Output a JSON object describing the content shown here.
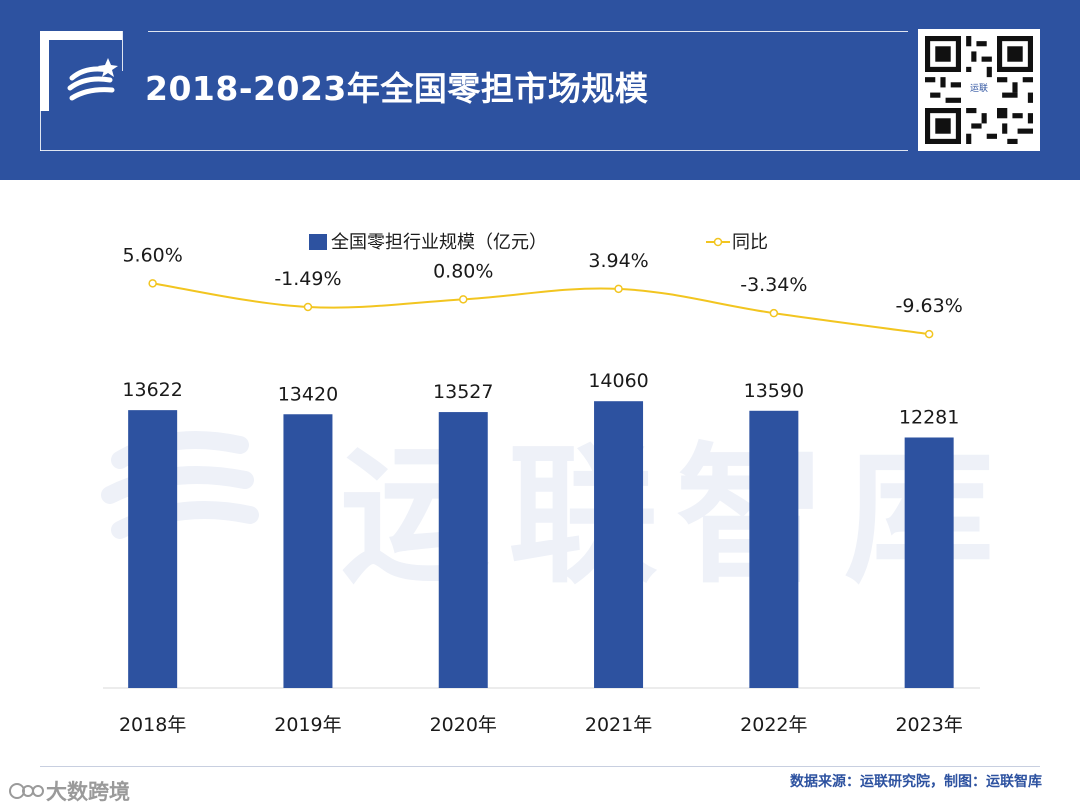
{
  "header": {
    "title": "2018-2023年全国零担市场规模",
    "qr_badge": "运联"
  },
  "legend": {
    "bar_label": "全国零担行业规模（亿元）",
    "line_label": "同比"
  },
  "watermark": "运联智库",
  "footer": {
    "source": "数据来源：运联研究院，制图：运联智库",
    "brand": "大数跨境"
  },
  "colors": {
    "bar": "#2d52a0",
    "line": "#f2c520",
    "header_bg": "#2d52a0"
  },
  "chart_data": {
    "type": "bar",
    "categories": [
      "2018年",
      "2019年",
      "2020年",
      "2021年",
      "2022年",
      "2023年"
    ],
    "series": [
      {
        "name": "全国零担行业规模（亿元）",
        "type": "bar",
        "values": [
          13622,
          13420,
          13527,
          14060,
          13590,
          12281
        ],
        "labels": [
          "13622",
          "13420",
          "13527",
          "14060",
          "13590",
          "12281"
        ]
      },
      {
        "name": "同比",
        "type": "line",
        "values": [
          5.6,
          -1.49,
          0.8,
          3.94,
          -3.34,
          -9.63
        ],
        "labels": [
          "5.60%",
          "-1.49%",
          "0.80%",
          "3.94%",
          "-3.34%",
          "-9.63%"
        ]
      }
    ],
    "title": "2018-2023年全国零担市场规模",
    "xlabel": "",
    "ylabel": "",
    "ylim": [
      0,
      15000
    ],
    "y2lim": [
      -30,
      15
    ],
    "grid": false,
    "legend_position": "top"
  }
}
